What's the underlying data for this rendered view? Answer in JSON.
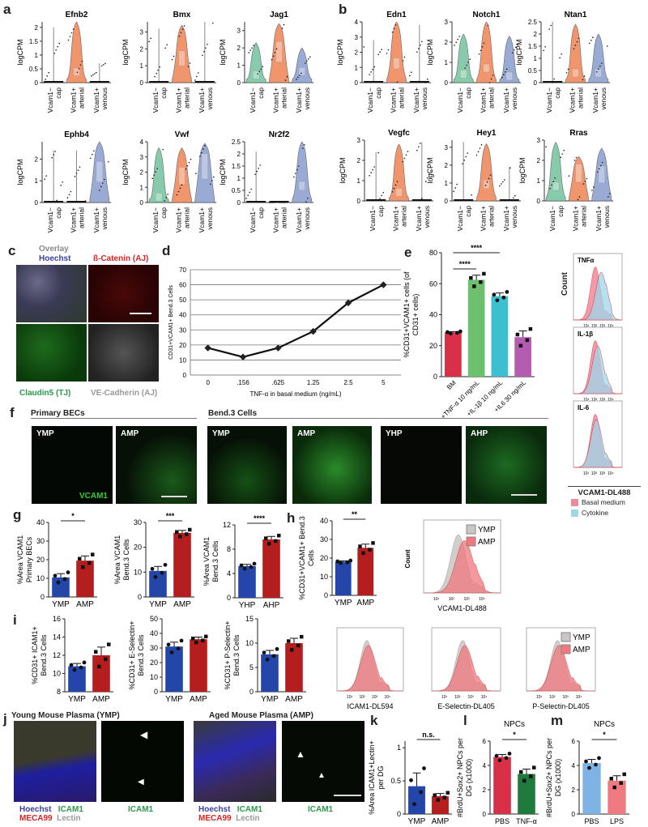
{
  "panel_labels": [
    "a",
    "b",
    "c",
    "d",
    "e",
    "f",
    "g",
    "h",
    "i",
    "j",
    "k",
    "l",
    "m"
  ],
  "violin": {
    "ylabel": "logCPM",
    "groups": [
      "Vcam1− cap",
      "Vcam1+ arterial",
      "Vcam1+ venous"
    ],
    "group_lines": [
      [
        "Vcam1−",
        "cap"
      ],
      [
        "Vcam1+",
        "arterial"
      ],
      [
        "Vcam1+",
        "venous"
      ]
    ],
    "colors": {
      "cap": "#7cc6a4",
      "arterial": "#f08a5d",
      "venous": "#8fa3d1"
    }
  },
  "panel_c": {
    "overlay": "Overlay",
    "hoechst": "Hoechst",
    "bcatenin": "ß-Catenin (AJ)",
    "claudin": "Claudin5 (TJ)",
    "vecad": "VE-Cadherin (AJ)"
  },
  "panel_f": {
    "primary": "Primary BECs",
    "bend": "Bend.3 Cells",
    "tiles": [
      "YMP",
      "AMP",
      "YMP",
      "AMP",
      "YHP",
      "AHP"
    ],
    "stain": "VCAM1"
  },
  "panel_e_hist": {
    "count": "Count",
    "titles": [
      "TNFα",
      "IL-1β",
      "IL-6"
    ],
    "xlabel": "VCAM1-DL488",
    "legend": [
      {
        "label": "Basal medium",
        "color": "#f08a9a"
      },
      {
        "label": "Cytokine",
        "color": "#9fd6ec"
      }
    ]
  },
  "panel_h_hist": {
    "ylabel": "Count",
    "xlabel": "VCAM1-DL488",
    "legend": [
      {
        "label": "YMP",
        "color": "#c9c6c4"
      },
      {
        "label": "AMP",
        "color": "#f0787e"
      }
    ]
  },
  "panel_i_hist": {
    "xlabels": [
      "ICAM1-DL594",
      "E-Selectin-DL405",
      "P-Selectin-DL405"
    ],
    "ylabel": "Count",
    "legend": [
      {
        "label": "YMP",
        "color": "#c9c6c4"
      },
      {
        "label": "AMP",
        "color": "#f0787e"
      }
    ]
  },
  "panel_j": {
    "ymp_title": "Young Mouse Plasma (YMP)",
    "amp_title": "Aged Mouse Plasma (AMP)",
    "hoechst": "Hoechst",
    "icam1": "ICAM1",
    "meca99": "MECA99",
    "lectin": "Lectin"
  },
  "chart_data": [
    {
      "panel": "a",
      "type": "violin",
      "title": "Efnb2",
      "ylabel": "logCPM",
      "categories": [
        "Vcam1− cap",
        "Vcam1+ arterial",
        "Vcam1+ venous"
      ],
      "yticks": [
        0.0,
        0.5,
        1.0,
        1.5,
        2.0
      ],
      "ylim": [
        0,
        2.2
      ],
      "medians": [
        0,
        0.3,
        0
      ],
      "max": [
        2.0,
        2.2,
        0.7
      ]
    },
    {
      "panel": "a",
      "type": "violin",
      "title": "Bmx",
      "ylabel": "logCPM",
      "categories": [
        "Vcam1− cap",
        "Vcam1+ arterial",
        "Vcam1+ venous"
      ],
      "yticks": [
        0,
        1,
        2,
        3
      ],
      "ylim": [
        0,
        3.6
      ],
      "medians": [
        0,
        1.5,
        0
      ],
      "max": [
        3.2,
        3.4,
        3.6
      ]
    },
    {
      "panel": "a",
      "type": "violin",
      "title": "Jag1",
      "ylabel": "logCPM",
      "categories": [
        "Vcam1− cap",
        "Vcam1+ arterial",
        "Vcam1+ venous"
      ],
      "yticks": [
        0,
        1,
        2,
        3
      ],
      "ylim": [
        0,
        3.5
      ],
      "medians": [
        0.3,
        2.0,
        0.5
      ],
      "max": [
        2.3,
        3.4,
        2.0
      ]
    },
    {
      "panel": "a",
      "type": "violin",
      "title": "Ephb4",
      "ylabel": "logCPM",
      "categories": [
        "Vcam1− cap",
        "Vcam1+ arterial",
        "Vcam1+ venous"
      ],
      "yticks": [
        0,
        1,
        2
      ],
      "ylim": [
        0,
        2.8
      ],
      "medians": [
        0,
        0,
        1.6
      ],
      "max": [
        2.4,
        2.4,
        2.8
      ]
    },
    {
      "panel": "a",
      "type": "violin",
      "title": "Vwf",
      "ylabel": "logCPM",
      "categories": [
        "Vcam1− cap",
        "Vcam1+ arterial",
        "Vcam1+ venous"
      ],
      "yticks": [
        0,
        1,
        2,
        3,
        4
      ],
      "ylim": [
        0,
        4
      ],
      "medians": [
        0.2,
        1.9,
        2.8
      ],
      "max": [
        3.6,
        3.6,
        3.9
      ]
    },
    {
      "panel": "a",
      "type": "violin",
      "title": "Nr2f2",
      "ylabel": "logCPM",
      "categories": [
        "Vcam1− cap",
        "Vcam1+ arterial",
        "Vcam1+ venous"
      ],
      "yticks": [
        0.0,
        0.5,
        1.0,
        1.5,
        2.0,
        2.5
      ],
      "ylim": [
        0,
        2.5
      ],
      "medians": [
        0,
        0,
        0.6
      ],
      "max": [
        2.1,
        0,
        2.5
      ]
    },
    {
      "panel": "b",
      "type": "violin",
      "title": "Edn1",
      "ylabel": "logCPM",
      "categories": [
        "Vcam1− cap",
        "Vcam1+ arterial",
        "Vcam1+ venous"
      ],
      "yticks": [
        0,
        1,
        2,
        3,
        4
      ],
      "ylim": [
        0,
        4
      ],
      "medians": [
        0,
        1.2,
        0
      ],
      "max": [
        2.8,
        4.0,
        3.8
      ]
    },
    {
      "panel": "b",
      "type": "violin",
      "title": "Notch1",
      "ylabel": "logCPM",
      "categories": [
        "Vcam1− cap",
        "Vcam1+ arterial",
        "Vcam1+ venous"
      ],
      "yticks": [
        0,
        1,
        2,
        3
      ],
      "ylim": [
        0,
        3
      ],
      "medians": [
        0.3,
        0.6,
        0.2
      ],
      "max": [
        2.4,
        3.0,
        2.3
      ]
    },
    {
      "panel": "b",
      "type": "violin",
      "title": "Ntan1",
      "ylabel": "logCPM",
      "categories": [
        "Vcam1− cap",
        "Vcam1+ arterial",
        "Vcam1+ venous"
      ],
      "yticks": [
        0.0,
        0.5,
        1.0,
        1.5,
        2.0,
        2.5
      ],
      "ylim": [
        0,
        2.5
      ],
      "medians": [
        0,
        0.3,
        0.3
      ],
      "max": [
        2.5,
        2.4,
        2.0
      ]
    },
    {
      "panel": "b",
      "type": "violin",
      "title": "Vegfc",
      "ylabel": "logCPM",
      "categories": [
        "Vcam1− cap",
        "Vcam1+ arterial",
        "Vcam1+ venous"
      ],
      "yticks": [
        0,
        1,
        2,
        3
      ],
      "ylim": [
        0,
        3
      ],
      "medians": [
        0,
        0.3,
        0
      ],
      "max": [
        2.4,
        2.8,
        2.9
      ]
    },
    {
      "panel": "b",
      "type": "violin",
      "title": "Hey1",
      "ylabel": "logCPM",
      "categories": [
        "Vcam1− cap",
        "Vcam1+ arterial",
        "Vcam1+ venous"
      ],
      "yticks": [
        0,
        1,
        2,
        3
      ],
      "ylim": [
        0,
        3.4
      ],
      "medians": [
        0,
        0.8,
        0
      ],
      "max": [
        3.3,
        3.2,
        1.9
      ]
    },
    {
      "panel": "b",
      "type": "violin",
      "title": "Rras",
      "ylabel": "logCPM",
      "categories": [
        "Vcam1− cap",
        "Vcam1+ arterial",
        "Vcam1+ venous"
      ],
      "yticks": [
        0,
        1,
        2,
        3
      ],
      "ylim": [
        0,
        3
      ],
      "medians": [
        0.6,
        1.5,
        1.4
      ],
      "max": [
        2.9,
        2.2,
        2.6
      ]
    },
    {
      "panel": "d",
      "type": "line",
      "title": "",
      "xlabel": "TNF-α in basal medium (ng/mL)",
      "ylabel": "CD31+VCAM1+ Bend.3 Cells",
      "categories": [
        "0",
        ".156",
        ".625",
        "1.25",
        "2.5",
        "5"
      ],
      "values": [
        18,
        12,
        18,
        29,
        48,
        60
      ],
      "yticks": [
        0,
        10,
        20,
        30,
        40,
        50,
        60,
        70
      ],
      "ylim": [
        0,
        70
      ],
      "grid": true
    },
    {
      "panel": "e",
      "type": "bar",
      "ylabel": "%CD31+VCAM1+ cells (of CD31+ cells)",
      "categories": [
        "BM",
        "+TNF-α 10 ng/mL",
        "+IL-1β 10 ng/mL",
        "+IL6 30 ng/mL"
      ],
      "values": [
        28.5,
        62.5,
        52,
        25.5
      ],
      "errors": [
        0.5,
        3,
        2,
        4
      ],
      "colors": [
        "#d9304a",
        "#6cc06e",
        "#3cbfcf",
        "#b45cb0"
      ],
      "yticks": [
        0,
        20,
        40,
        60,
        80
      ],
      "ylim": [
        0,
        80
      ],
      "annotations": [
        {
          "from": 0,
          "to": 1,
          "label": "****"
        },
        {
          "from": 0,
          "to": 2,
          "label": "****"
        }
      ]
    },
    {
      "panel": "g",
      "type": "bar",
      "ylabel": "%Area VCAM1 Primary BECs",
      "categories": [
        "YMP",
        "AMP"
      ],
      "values": [
        10.5,
        19.5
      ],
      "errors": [
        2,
        2.5
      ],
      "colors": [
        "#2346a8",
        "#b41e1e"
      ],
      "yticks": [
        0,
        10,
        20,
        30,
        40
      ],
      "ylim": [
        0,
        40
      ],
      "annotations": [
        {
          "from": 0,
          "to": 1,
          "label": "*"
        }
      ]
    },
    {
      "panel": "g",
      "type": "bar",
      "ylabel": "%Area VCAM1 Bend.3 Cells",
      "categories": [
        "YMP",
        "AMP"
      ],
      "values": [
        10.5,
        25.8
      ],
      "errors": [
        1.8,
        1
      ],
      "colors": [
        "#2346a8",
        "#b41e1e"
      ],
      "yticks": [
        0,
        10,
        20,
        30
      ],
      "ylim": [
        0,
        30
      ],
      "annotations": [
        {
          "from": 0,
          "to": 1,
          "label": "***"
        }
      ]
    },
    {
      "panel": "g",
      "type": "bar",
      "ylabel": "%Area VCAM1 Bend.3 Cells",
      "categories": [
        "YHP",
        "AHP"
      ],
      "values": [
        5.2,
        9.6
      ],
      "errors": [
        0.3,
        0.5
      ],
      "colors": [
        "#2346a8",
        "#b41e1e"
      ],
      "yticks": [
        0,
        4,
        8,
        12
      ],
      "ylim": [
        0,
        12
      ],
      "annotations": [
        {
          "from": 0,
          "to": 1,
          "label": "****"
        }
      ]
    },
    {
      "panel": "h",
      "type": "bar",
      "ylabel": "%CD31+VCAM1+ Bend.3 Cells",
      "categories": [
        "YMP",
        "AMP"
      ],
      "values": [
        18,
        25.5
      ],
      "errors": [
        0.5,
        2
      ],
      "colors": [
        "#2346a8",
        "#b41e1e"
      ],
      "yticks": [
        0,
        10,
        20,
        30,
        40
      ],
      "ylim": [
        0,
        40
      ],
      "annotations": [
        {
          "from": 0,
          "to": 1,
          "label": "**"
        }
      ]
    },
    {
      "panel": "i",
      "type": "bar",
      "ylabel": "%CD31+ ICAM1+ Bend.3 Cells",
      "categories": [
        "YMP",
        "AMP"
      ],
      "values": [
        10.8,
        12.0
      ],
      "errors": [
        0.3,
        0.9
      ],
      "colors": [
        "#2346a8",
        "#b41e1e"
      ],
      "yticks": [
        8,
        10,
        12,
        14,
        16
      ],
      "ylim": [
        8,
        16
      ]
    },
    {
      "panel": "i",
      "type": "bar",
      "ylabel": "%CD31+ E-Selectin+ Bend.3 Cells",
      "categories": [
        "YMP",
        "AMP"
      ],
      "values": [
        31,
        36
      ],
      "errors": [
        3,
        1.5
      ],
      "colors": [
        "#2346a8",
        "#b41e1e"
      ],
      "yticks": [
        0,
        10,
        20,
        30,
        40,
        50
      ],
      "ylim": [
        0,
        50
      ]
    },
    {
      "panel": "i",
      "type": "bar",
      "ylabel": "%CD31+ P-Selectin+ Bend.3 Cells",
      "categories": [
        "YMP",
        "AMP"
      ],
      "values": [
        7.7,
        10
      ],
      "errors": [
        0.8,
        1
      ],
      "colors": [
        "#2346a8",
        "#b41e1e"
      ],
      "yticks": [
        0,
        5,
        10,
        15
      ],
      "ylim": [
        0,
        15
      ]
    },
    {
      "panel": "k",
      "type": "bar",
      "ylabel": "%Area ICAM1+Lectin+ per DG",
      "categories": [
        "YMP",
        "AMP"
      ],
      "values": [
        0.42,
        0.27
      ],
      "errors": [
        0.2,
        0.04
      ],
      "colors": [
        "#2346a8",
        "#b41e1e"
      ],
      "yticks": [
        0.0,
        0.5,
        1.0
      ],
      "ylim": [
        0,
        1.1
      ],
      "annotations": [
        {
          "from": 0,
          "to": 1,
          "label": "n.s."
        }
      ]
    },
    {
      "panel": "l",
      "type": "bar",
      "title": "NPCs",
      "ylabel": "#BrdU+Sox2+ NPCs per DG (x1000)",
      "categories": [
        "PBS",
        "TNF-α"
      ],
      "values": [
        4.7,
        3.3
      ],
      "errors": [
        0.2,
        0.4
      ],
      "colors": [
        "#d9304a",
        "#1f7a3c"
      ],
      "yticks": [
        0,
        2,
        4,
        6
      ],
      "ylim": [
        0,
        6
      ],
      "annotations": [
        {
          "from": 0,
          "to": 1,
          "label": "*"
        }
      ]
    },
    {
      "panel": "m",
      "type": "bar",
      "title": "NPCs",
      "ylabel": "#BrdU+Sox2+ NPCs per DG (x1000)",
      "categories": [
        "PBS",
        "LPS"
      ],
      "values": [
        4.2,
        2.75
      ],
      "errors": [
        0.3,
        0.4
      ],
      "colors": [
        "#7fb2e5",
        "#f07a82"
      ],
      "yticks": [
        0,
        2,
        4,
        6
      ],
      "ylim": [
        0,
        6
      ],
      "annotations": [
        {
          "from": 0,
          "to": 1,
          "label": "*"
        }
      ]
    }
  ]
}
